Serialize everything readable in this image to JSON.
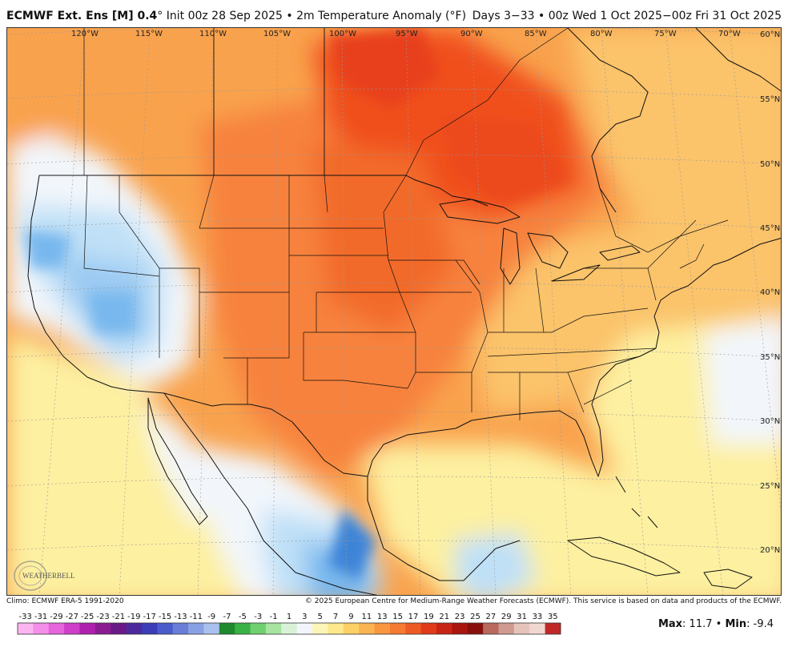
{
  "header": {
    "model": "ECMWF Ext. Ens [M] 0.4",
    "degree": "°",
    "info": " Init 00z 28 Sep 2025 • 2m Temperature Anomaly (°F)",
    "period": "Days 3−33 • 00z Wed 1 Oct 2025−00z Fri 31 Oct 2025"
  },
  "map": {
    "lon_labels": [
      "120°W",
      "115°W",
      "110°W",
      "105°W",
      "100°W",
      "95°W",
      "90°W",
      "85°W",
      "80°W",
      "75°W",
      "70°W"
    ],
    "lat_labels": [
      "60°N",
      "55°N",
      "50°N",
      "45°N",
      "40°N",
      "35°N",
      "30°N",
      "25°N",
      "20°N"
    ],
    "colors": {
      "deep_orange": "#f0501e",
      "orange": "#f7823c",
      "light_orange": "#f9a24d",
      "tan": "#fbc36a",
      "yellow": "#fdf0a0",
      "near_zero": "#f2f6fb",
      "light_blue": "#bfe0f7",
      "blue": "#78b8ee",
      "dark_blue": "#3c84d8"
    }
  },
  "footer": {
    "climo": "Climo: ECMWF ERA-5 1991-2020",
    "copyright": "© 2025 European Centre for Medium-Range Weather Forecasts (ECMWF). This service is based on data and products of the ECMWF."
  },
  "colorbar": {
    "labels": [
      "-33",
      "-31",
      "-29",
      "-27",
      "-25",
      "-23",
      "-21",
      "-19",
      "-17",
      "-15",
      "-13",
      "-11",
      "-9",
      "-7",
      "-5",
      "-3",
      "-1",
      "1",
      "3",
      "5",
      "7",
      "9",
      "11",
      "13",
      "15",
      "17",
      "19",
      "21",
      "23",
      "25",
      "27",
      "29",
      "31",
      "33",
      "35"
    ],
    "colors": [
      "#fbb6f0",
      "#f48ee8",
      "#e664dc",
      "#cf3ec8",
      "#b020ae",
      "#8a1c92",
      "#6a1a86",
      "#4c2a9c",
      "#3a3cb8",
      "#4a5ccc",
      "#6a7ed8",
      "#8aa0e4",
      "#aac0ee",
      "#1e8a2e",
      "#38b244",
      "#70d070",
      "#a6e4a0",
      "#d8f2d8",
      "#f2f6fb",
      "#fdf4b8",
      "#fde88c",
      "#fcd066",
      "#fbb452",
      "#f99640",
      "#f57a32",
      "#ee5a24",
      "#e03a1a",
      "#c82414",
      "#a8160e",
      "#88100c",
      "#b86a5e",
      "#d09a90",
      "#e6c4bc",
      "#f0d8d0",
      "#c02828"
    ]
  },
  "stats": {
    "max_label": "Max",
    "max_value": ": 11.7",
    "sep": " • ",
    "min_label": "Min",
    "min_value": ": -9.4"
  },
  "logo": {
    "text": "WEATHERBELL"
  }
}
